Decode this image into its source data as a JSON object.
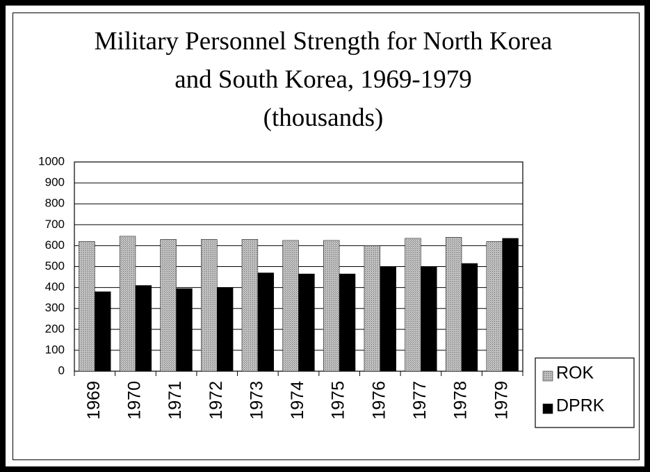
{
  "chart_data": {
    "type": "bar",
    "title": "Military Personnel Strength for North Korea and South Korea, 1969-1979",
    "subtitle": "(thousands)",
    "categories": [
      "1969",
      "1970",
      "1971",
      "1972",
      "1973",
      "1974",
      "1975",
      "1976",
      "1977",
      "1978",
      "1979"
    ],
    "series": [
      {
        "name": "ROK",
        "color": "#ababab",
        "values": [
          620,
          645,
          630,
          630,
          630,
          625,
          625,
          600,
          635,
          640,
          620
        ]
      },
      {
        "name": "DPRK",
        "color": "#000000",
        "values": [
          380,
          410,
          395,
          400,
          470,
          465,
          465,
          500,
          500,
          515,
          635
        ]
      }
    ],
    "ylim": [
      0,
      1000
    ],
    "yticks": [
      0,
      100,
      200,
      300,
      400,
      500,
      600,
      700,
      800,
      900,
      1000
    ],
    "grid": true,
    "legend": "bottom-right"
  }
}
